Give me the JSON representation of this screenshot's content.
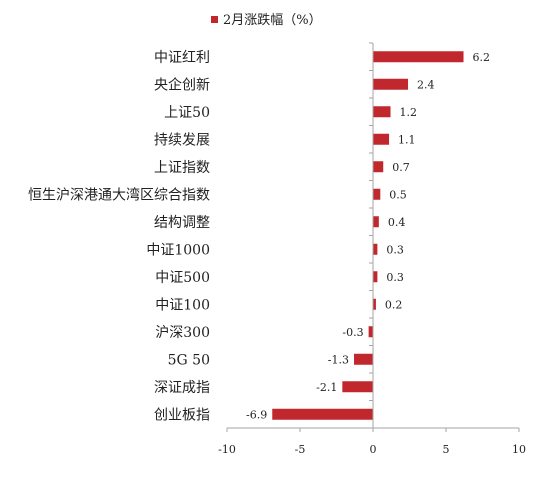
{
  "chart_data": {
    "type": "bar",
    "orientation": "horizontal",
    "legend": {
      "label": "2月涨跌幅（%）",
      "placement": "top"
    },
    "categories": [
      "中证红利",
      "央企创新",
      "上证50",
      "持续发展",
      "上证指数",
      "恒生沪深港通大湾区综合指数",
      "结构调整",
      "中证1000",
      "中证500",
      "中证100",
      "沪深300",
      "5G 50",
      "深证成指",
      "创业板指"
    ],
    "series": [
      {
        "name": "2月涨跌幅（%）",
        "values": [
          6.2,
          2.4,
          1.2,
          1.1,
          0.7,
          0.5,
          0.4,
          0.3,
          0.3,
          0.2,
          -0.3,
          -1.3,
          -2.1,
          -6.9
        ]
      }
    ],
    "value_labels": [
      "6.2",
      "2.4",
      "1.2",
      "1.1",
      "0.7",
      "0.5",
      "0.4",
      "0.3",
      "0.3",
      "0.2",
      "-0.3",
      "-1.3",
      "-2.1",
      "-6.9"
    ],
    "xlim": [
      -10,
      10
    ],
    "xticks": [
      -10,
      -5,
      0,
      5,
      10
    ],
    "xtick_labels": [
      "-10",
      "-5",
      "0",
      "5",
      "10"
    ],
    "grid": false,
    "bar_color": "#c0282d",
    "axis_color": "#a6a6a6"
  }
}
